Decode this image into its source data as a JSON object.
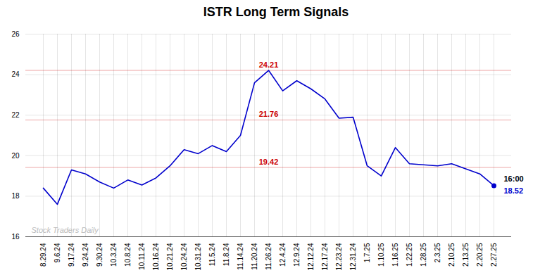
{
  "chart_data": {
    "type": "line",
    "title": "ISTR Long Term Signals",
    "categories": [
      "8.29.24",
      "9.6.24",
      "9.17.24",
      "9.24.24",
      "9.30.24",
      "10.3.24",
      "10.8.24",
      "10.11.24",
      "10.16.24",
      "10.21.24",
      "10.24.24",
      "10.31.24",
      "11.5.24",
      "11.8.24",
      "11.14.24",
      "11.20.24",
      "11.26.24",
      "12.4.24",
      "12.9.24",
      "12.12.24",
      "12.17.24",
      "12.23.24",
      "12.31.24",
      "1.7.25",
      "1.10.25",
      "1.16.25",
      "1.22.25",
      "1.28.25",
      "2.3.25",
      "2.10.25",
      "2.13.25",
      "2.20.25",
      "2.27.25"
    ],
    "values": [
      18.4,
      17.6,
      19.3,
      19.1,
      18.7,
      18.4,
      18.8,
      18.55,
      18.9,
      19.5,
      20.3,
      20.1,
      20.5,
      20.2,
      21.0,
      23.6,
      24.21,
      23.2,
      23.7,
      23.3,
      22.8,
      21.85,
      21.9,
      19.5,
      19.0,
      20.4,
      19.6,
      19.55,
      19.5,
      19.6,
      19.35,
      19.1,
      18.52
    ],
    "color": "#0000cc",
    "hlines": [
      {
        "value": 24.21,
        "label": "24.21",
        "color": "#cc0000"
      },
      {
        "value": 21.76,
        "label": "21.76",
        "color": "#cc0000"
      },
      {
        "value": 19.42,
        "label": "19.42",
        "color": "#cc0000"
      }
    ],
    "end_labels": [
      "16:00",
      "18.52"
    ],
    "annotations": [
      "Stock Traders Daily"
    ],
    "ylim": [
      16,
      26
    ],
    "yticks": [
      16,
      18,
      20,
      22,
      24,
      26
    ],
    "grid": true
  }
}
